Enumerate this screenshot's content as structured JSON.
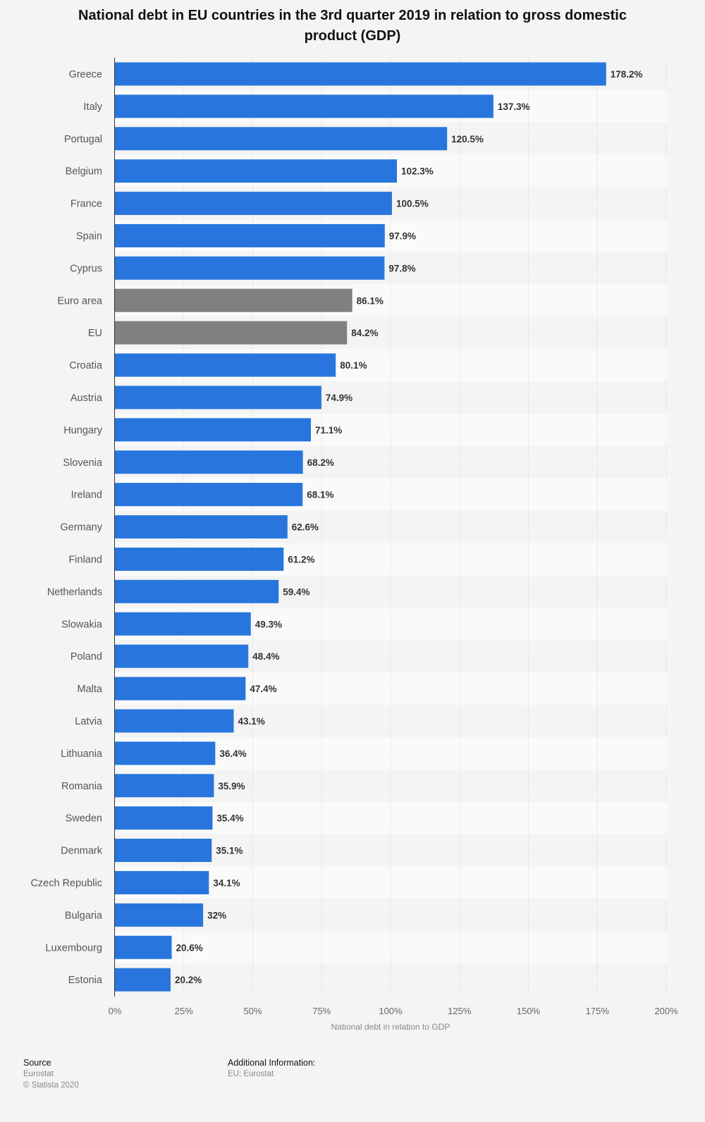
{
  "chart_data": {
    "type": "bar",
    "orientation": "horizontal",
    "title": "National debt in EU countries in the 3rd quarter 2019 in relation to gross domestic product (GDP)",
    "xlabel": "National debt in relation to GDP",
    "ylabel": "",
    "xlim": [
      0,
      200
    ],
    "x_ticks": [
      "0%",
      "25%",
      "50%",
      "75%",
      "100%",
      "125%",
      "150%",
      "175%",
      "200%"
    ],
    "grid": "vertical dotted",
    "categories": [
      "Greece",
      "Italy",
      "Portugal",
      "Belgium",
      "France",
      "Spain",
      "Cyprus",
      "Euro area",
      "EU",
      "Croatia",
      "Austria",
      "Hungary",
      "Slovenia",
      "Ireland",
      "Germany",
      "Finland",
      "Netherlands",
      "Slowakia",
      "Poland",
      "Malta",
      "Latvia",
      "Lithuania",
      "Romania",
      "Sweden",
      "Denmark",
      "Czech Republic",
      "Bulgaria",
      "Luxembourg",
      "Estonia"
    ],
    "values": [
      178.2,
      137.3,
      120.5,
      102.3,
      100.5,
      97.9,
      97.8,
      86.1,
      84.2,
      80.1,
      74.9,
      71.1,
      68.2,
      68.1,
      62.6,
      61.2,
      59.4,
      49.3,
      48.4,
      47.4,
      43.1,
      36.4,
      35.9,
      35.4,
      35.1,
      34.1,
      32,
      20.6,
      20.2
    ],
    "value_labels": [
      "178.2%",
      "137.3%",
      "120.5%",
      "102.3%",
      "100.5%",
      "97.9%",
      "97.8%",
      "86.1%",
      "84.2%",
      "80.1%",
      "74.9%",
      "71.1%",
      "68.2%",
      "68.1%",
      "62.6%",
      "61.2%",
      "59.4%",
      "49.3%",
      "48.4%",
      "47.4%",
      "43.1%",
      "36.4%",
      "35.9%",
      "35.4%",
      "35.1%",
      "34.1%",
      "32%",
      "20.6%",
      "20.2%"
    ],
    "highlighted_categories": [
      "Euro area",
      "EU"
    ],
    "colors": {
      "bar": "#2876dd",
      "highlight": "#808080"
    }
  },
  "footer": {
    "source_heading": "Source",
    "source_name": "Eurostat",
    "copyright": "© Statista 2020",
    "info_heading": "Additional Information:",
    "info_text": "EU; Eurostat"
  }
}
